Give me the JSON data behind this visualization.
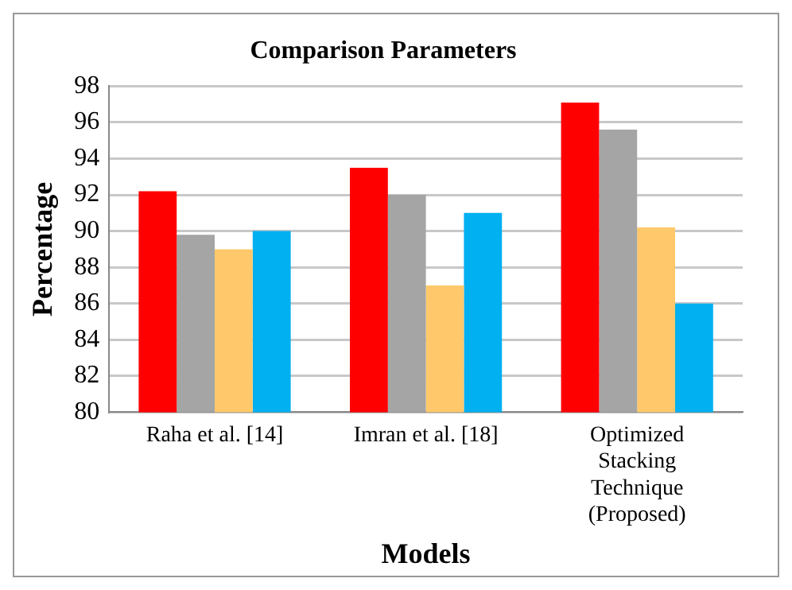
{
  "chart_data": {
    "type": "bar",
    "title": "Comparison Parameters",
    "xlabel": "Models",
    "ylabel": "Percentage",
    "categories": [
      "Raha et al. [14]",
      "Imran et al. [18]",
      "Optimized Stacking Technique (Proposed)"
    ],
    "series": [
      {
        "color": "#ff0000",
        "values": [
          92.2,
          93.5,
          97.1
        ]
      },
      {
        "color": "#a5a5a5",
        "values": [
          89.8,
          92.0,
          95.6
        ]
      },
      {
        "color": "#ffc96b",
        "values": [
          89.0,
          87.0,
          90.2
        ]
      },
      {
        "color": "#00b0f0",
        "values": [
          90.0,
          91.0,
          86.0
        ]
      }
    ],
    "ylim": [
      80,
      98
    ],
    "yticks": [
      80,
      82,
      84,
      86,
      88,
      90,
      92,
      94,
      96,
      98
    ],
    "grid": "y",
    "legend": false
  }
}
